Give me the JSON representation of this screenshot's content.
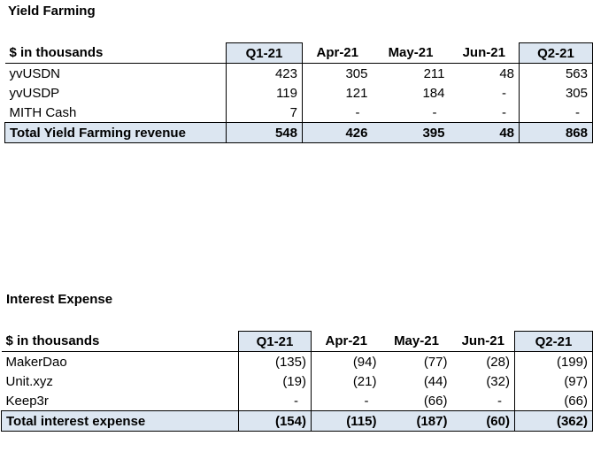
{
  "yield": {
    "title": "Yield Farming",
    "header": [
      "$ in thousands",
      "Q1-21",
      "Apr-21",
      "May-21",
      "Jun-21",
      "Q2-21"
    ],
    "rows": [
      [
        "yvUSDN",
        "423",
        "305",
        "211",
        "48",
        "563"
      ],
      [
        "yvUSDP",
        "119",
        "121",
        "184",
        "-",
        "305"
      ],
      [
        "MITH Cash",
        "7",
        "-",
        "-",
        "-",
        "-"
      ]
    ],
    "total": [
      "Total Yield Farming revenue",
      "548",
      "426",
      "395",
      "48",
      "868"
    ]
  },
  "interest": {
    "title": "Interest Expense",
    "header": [
      "$ in thousands",
      "Q1-21",
      "Apr-21",
      "May-21",
      "Jun-21",
      "Q2-21"
    ],
    "rows": [
      [
        "MakerDao",
        "(135)",
        "(94)",
        "(77)",
        "(28)",
        "(199)"
      ],
      [
        "Unit.xyz",
        "(19)",
        "(21)",
        "(44)",
        "(32)",
        "(97)"
      ],
      [
        "Keep3r",
        "-",
        "-",
        "(66)",
        "-",
        "(66)"
      ]
    ],
    "total": [
      "Total interest expense",
      "(154)",
      "(115)",
      "(187)",
      "(60)",
      "(362)"
    ]
  },
  "colors": {
    "highlight": "#dce6f1",
    "border": "#000000"
  }
}
